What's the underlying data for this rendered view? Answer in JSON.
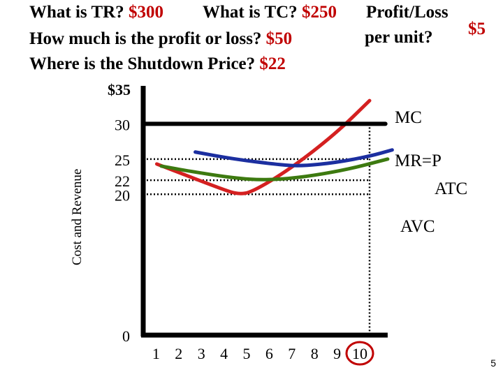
{
  "questions": {
    "tr_label": "What is TR?",
    "tr_value": "$300",
    "tc_label": "What is TC?",
    "tc_value": "$250",
    "profit_label": "How much is the profit or loss?",
    "profit_value": "$50",
    "shutdown_label": "Where is the Shutdown Price?",
    "shutdown_value": "$22",
    "per_unit_label_1": "Profit/Loss",
    "per_unit_label_2": "per unit?",
    "per_unit_value": "$5"
  },
  "slide_number": "5",
  "colors": {
    "answer": "#c00000",
    "mc": "#d42020",
    "atc": "#1c2fa0",
    "avc": "#3d7a10",
    "axis": "#000000"
  },
  "chart_data": {
    "type": "line",
    "ylabel": "Cost and Revenue",
    "xlabel": "",
    "x_ticks": [
      "1",
      "2",
      "3",
      "4",
      "5",
      "6",
      "7",
      "8",
      "9",
      "10"
    ],
    "y_ticks": [
      {
        "label": "$35",
        "value": 35
      },
      {
        "label": "30",
        "value": 30
      },
      {
        "label": "25",
        "value": 25
      },
      {
        "label": "22",
        "value": 22
      },
      {
        "label": "20",
        "value": 20
      },
      {
        "label": "0",
        "value": 0
      }
    ],
    "xlim": [
      0,
      10.7
    ],
    "ylim": [
      0,
      35
    ],
    "highlighted_quantity": 10,
    "series": [
      {
        "name": "MC",
        "points": [
          [
            0.6,
            24.3
          ],
          [
            3.5,
            20.7
          ],
          [
            4.2,
            20.0
          ],
          [
            4.8,
            20.3
          ],
          [
            6.5,
            23.6
          ],
          [
            8.5,
            28.6
          ],
          [
            10,
            33.3
          ]
        ]
      },
      {
        "name": "MR=P",
        "points": [
          [
            0,
            30
          ],
          [
            10.7,
            30
          ]
        ]
      },
      {
        "name": "ATC",
        "points": [
          [
            2.3,
            26.0
          ],
          [
            4,
            25.0
          ],
          [
            6,
            24.2
          ],
          [
            7,
            24.0
          ],
          [
            8.5,
            24.5
          ],
          [
            10,
            25.4
          ],
          [
            11.0,
            26.3
          ]
        ]
      },
      {
        "name": "AVC",
        "points": [
          [
            0.8,
            24.0
          ],
          [
            2,
            23.3
          ],
          [
            4,
            22.3
          ],
          [
            5.4,
            22.0
          ],
          [
            7,
            22.4
          ],
          [
            9,
            23.5
          ],
          [
            10.8,
            25.0
          ]
        ]
      }
    ],
    "reference_lines": [
      {
        "axis": "y",
        "value": 25
      },
      {
        "axis": "y",
        "value": 22
      },
      {
        "axis": "y",
        "value": 20
      },
      {
        "axis": "x",
        "value": 10
      }
    ]
  }
}
